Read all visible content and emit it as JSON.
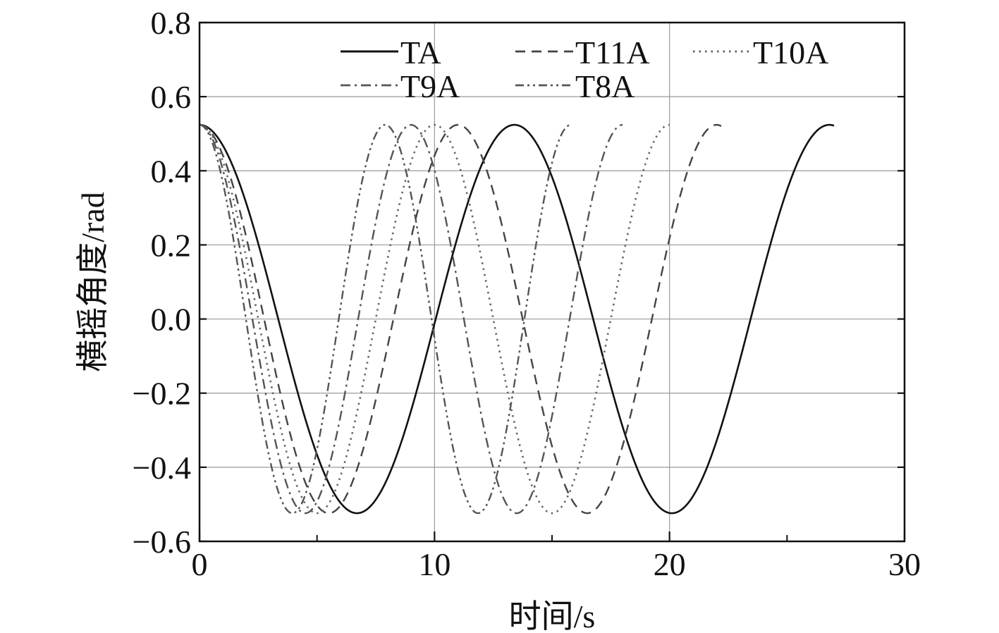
{
  "chart_data": {
    "type": "line",
    "xlabel": "时间/s",
    "ylabel": "横摇角度/rad",
    "xlim": [
      0,
      30
    ],
    "ylim": [
      -0.6,
      0.8
    ],
    "xticks": [
      "0",
      "10",
      "20",
      "30"
    ],
    "yticks": [
      "-0.6",
      "-0.4",
      "-0.2",
      "0.0",
      "0.2",
      "0.4",
      "0.6",
      "0.8"
    ],
    "grid": true,
    "legend_position": "top",
    "amplitude": 0.524,
    "series": [
      {
        "name": "TA",
        "period": 13.4,
        "x_end": 27.0,
        "color": "#111111",
        "dash": "",
        "width": 2.6
      },
      {
        "name": "T11A",
        "period": 11.0,
        "x_end": 22.2,
        "color": "#444444",
        "dash": "14 9",
        "width": 2.4
      },
      {
        "name": "T10A",
        "period": 10.0,
        "x_end": 20.0,
        "color": "#666666",
        "dash": "2.5 6",
        "width": 2.6
      },
      {
        "name": "T9A",
        "period": 9.0,
        "x_end": 18.0,
        "color": "#555555",
        "dash": "14 6 3 6",
        "width": 2.4
      },
      {
        "name": "T8A",
        "period": 7.9,
        "x_end": 15.8,
        "color": "#555555",
        "dash": "12 5 3 5 3 5",
        "width": 2.4
      }
    ]
  }
}
